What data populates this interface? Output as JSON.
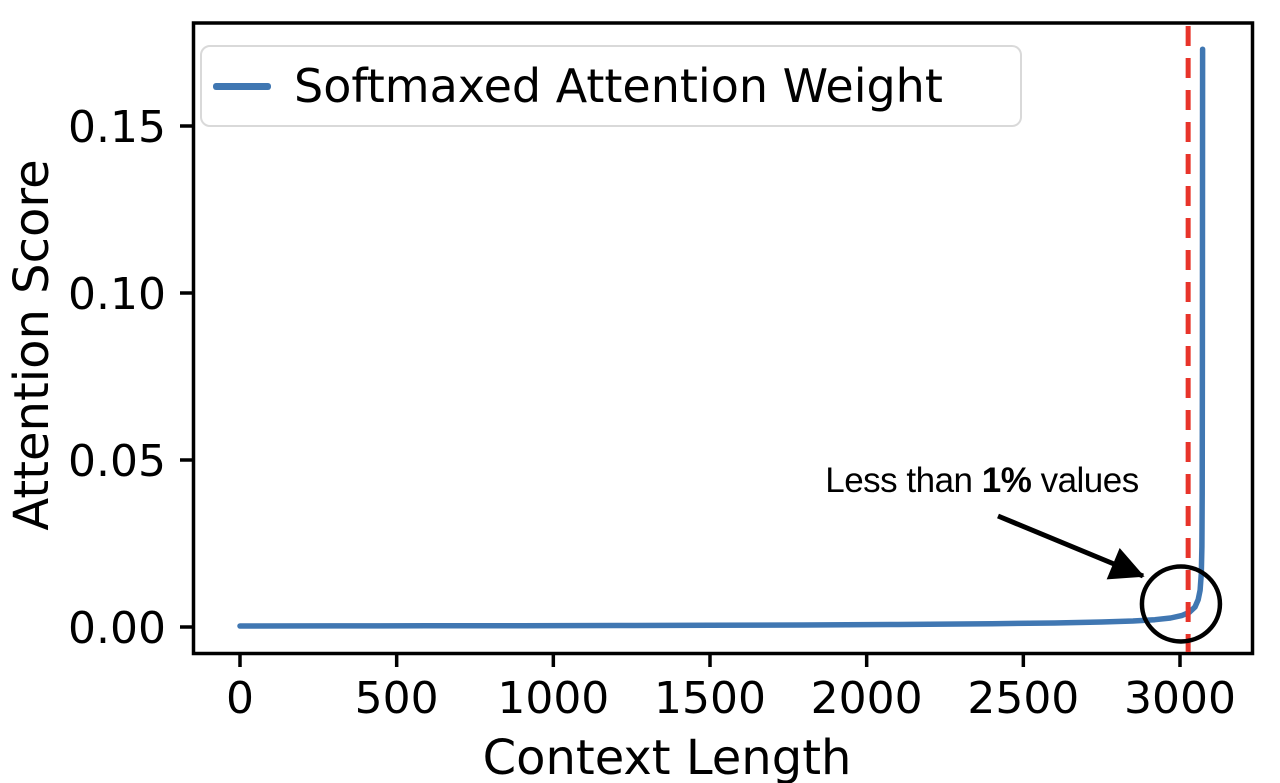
{
  "chart_data": {
    "type": "line",
    "title": "",
    "xlabel": "Context Length",
    "ylabel": "Attention Score",
    "x_ticks": [
      0,
      500,
      1000,
      1500,
      2000,
      2500,
      3000
    ],
    "y_ticks": [
      0.0,
      0.05,
      0.1,
      0.15
    ],
    "y_tick_labels": [
      "0.00",
      "0.05",
      "0.10",
      "0.15"
    ],
    "xlim": [
      -154,
      3226
    ],
    "ylim": [
      -0.0084,
      0.1813
    ],
    "grid": false,
    "legend_position": "upper left",
    "series": [
      {
        "name": "Softmaxed Attention Weight",
        "color": "#4077b2",
        "x": [
          0,
          300,
          600,
          900,
          1200,
          1500,
          1800,
          2100,
          2400,
          2600,
          2750,
          2850,
          2920,
          2970,
          3005,
          3030,
          3048,
          3058,
          3064,
          3068,
          3070,
          3071,
          3071.6,
          3072
        ],
        "y": [
          0.0003,
          0.00032,
          0.00035,
          0.0004,
          0.00045,
          0.0005,
          0.0006,
          0.00075,
          0.001,
          0.0012,
          0.0015,
          0.0018,
          0.0022,
          0.0027,
          0.0034,
          0.0044,
          0.006,
          0.0082,
          0.011,
          0.016,
          0.024,
          0.04,
          0.08,
          0.173
        ]
      }
    ],
    "vline": {
      "x": 3026,
      "color": "#e8342a",
      "style": "dashed"
    },
    "annotation_circle": {
      "x": 3003,
      "y": 0.0069,
      "note": "circle around curve elbow"
    }
  },
  "legend": {
    "label": "Softmaxed Attention Weight"
  },
  "annotation": {
    "prefix": "Less than ",
    "bold": "1%",
    "suffix": " values"
  },
  "colors": {
    "line": "#4077b2",
    "vline": "#e8342a",
    "text": "#000000",
    "spine": "#000000",
    "legend_border": "#d9d9d9"
  }
}
